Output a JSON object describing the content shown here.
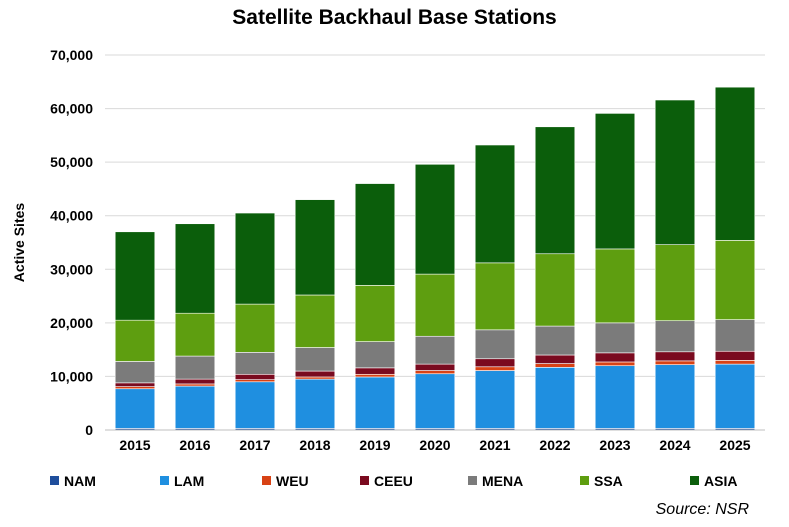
{
  "chart_data": {
    "type": "bar",
    "stacked": true,
    "title": "Satellite Backhaul Base Stations",
    "ylabel": "Active Sites",
    "xlabel": "",
    "ylim": [
      0,
      70000
    ],
    "yticks": [
      0,
      10000,
      20000,
      30000,
      40000,
      50000,
      60000,
      70000
    ],
    "ytick_labels": [
      "0",
      "10,000",
      "20,000",
      "30,000",
      "40,000",
      "50,000",
      "60,000",
      "70,000"
    ],
    "grid": true,
    "legend_position": "bottom",
    "categories": [
      "2015",
      "2016",
      "2017",
      "2018",
      "2019",
      "2020",
      "2021",
      "2022",
      "2023",
      "2024",
      "2025"
    ],
    "series": [
      {
        "name": "NAM",
        "color": "#1f4e9c",
        "values": [
          300,
          300,
          300,
          300,
          300,
          300,
          300,
          300,
          300,
          300,
          300
        ]
      },
      {
        "name": "LAM",
        "color": "#1f8fe0",
        "values": [
          7400,
          7900,
          8700,
          9200,
          9600,
          10200,
          10800,
          11400,
          11700,
          11900,
          12000
        ]
      },
      {
        "name": "WEU",
        "color": "#d84215",
        "values": [
          400,
          400,
          400,
          400,
          500,
          600,
          700,
          700,
          700,
          700,
          700
        ]
      },
      {
        "name": "CEEU",
        "color": "#7a0a1f",
        "values": [
          700,
          900,
          1000,
          1100,
          1200,
          1200,
          1500,
          1600,
          1700,
          1700,
          1700
        ]
      },
      {
        "name": "MENA",
        "color": "#7b7b7b",
        "values": [
          4000,
          4300,
          4100,
          4400,
          4900,
          5200,
          5400,
          5400,
          5600,
          5800,
          5900
        ]
      },
      {
        "name": "SSA",
        "color": "#5e9e10",
        "values": [
          7700,
          8000,
          9000,
          9800,
          10500,
          11600,
          12500,
          13500,
          13800,
          14200,
          14800
        ]
      },
      {
        "name": "ASIA",
        "color": "#0b5e0b",
        "values": [
          16500,
          16700,
          17000,
          17800,
          19000,
          20500,
          22000,
          23700,
          25300,
          27000,
          28600
        ]
      }
    ]
  },
  "source": "Source: NSR"
}
